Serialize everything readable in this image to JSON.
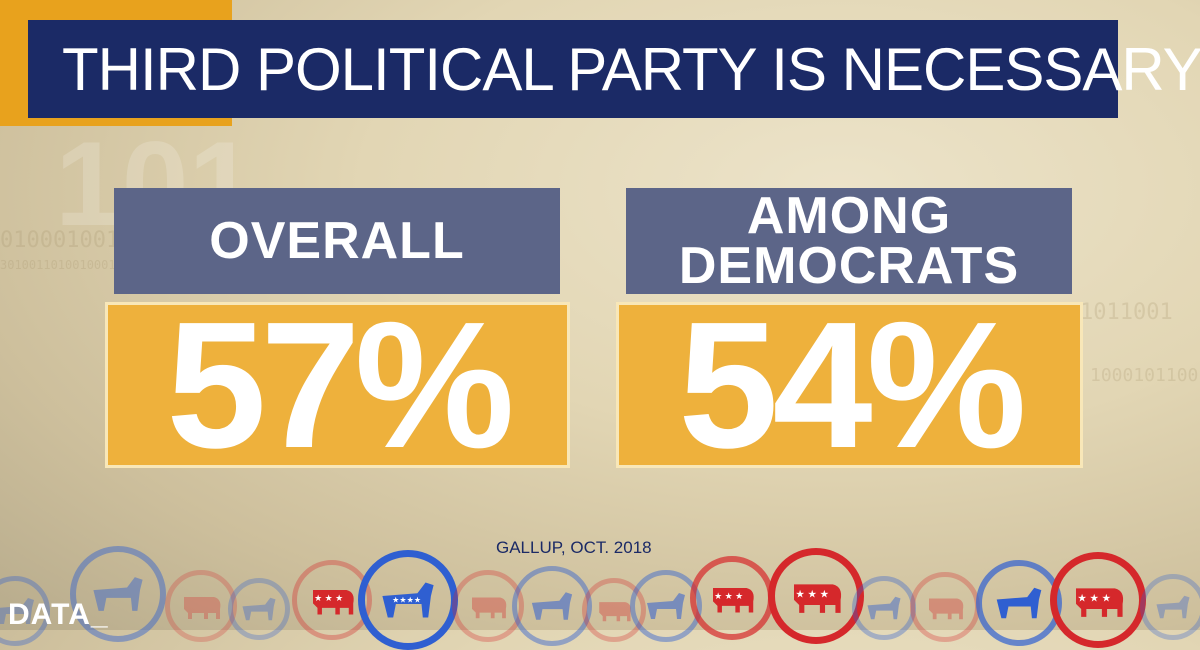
{
  "title": "THIRD POLITICAL PARTY IS NECESSARY",
  "stats": [
    {
      "label_lines": [
        "OVERALL"
      ],
      "value": "57%"
    },
    {
      "label_lines": [
        "AMONG",
        "DEMOCRATS"
      ],
      "value": "54%"
    }
  ],
  "source": "GALLUP, OCT. 2018",
  "logo": "DATA_",
  "colors": {
    "title_bar": "#1b2a66",
    "accent_gold": "#e8a21d",
    "label_box": "#5c6588",
    "value_box": "#eeb13c",
    "democrat_blue": "#2f5fd1",
    "republican_red": "#d5282b"
  },
  "party_icons": [
    {
      "party": "democrat",
      "icon": "donkey-icon"
    },
    {
      "party": "republican",
      "icon": "elephant-icon"
    }
  ]
}
